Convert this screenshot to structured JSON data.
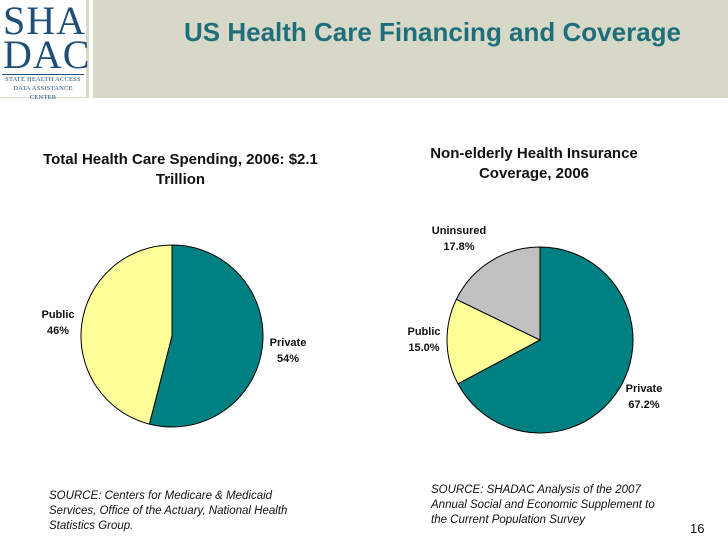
{
  "header": {
    "title": "US Health Care Financing and Coverage",
    "logo": {
      "line1": "SHA",
      "line2": "DAC",
      "sub1": "STATE HEALTH ACCESS",
      "sub2": "DATA ASSISTANCE CENTER"
    }
  },
  "colors": {
    "teal": "#008080",
    "yellow": "#ffff99",
    "gray": "#c0c0c0",
    "title": "#1f6f7a",
    "band": "#d7d8c8"
  },
  "chart_data": [
    {
      "type": "pie",
      "title": "Total Health Care Spending, 2006: $2.1 Trillion",
      "slices": [
        {
          "name": "Private",
          "value": 54,
          "label": "54%",
          "color": "#008080"
        },
        {
          "name": "Public",
          "value": 46,
          "label": "46%",
          "color": "#ffff99"
        }
      ],
      "legend": "none",
      "source": "SOURCE: Centers for Medicare & Medicaid Services, Office of the Actuary, National Health Statistics Group."
    },
    {
      "type": "pie",
      "title": "Non-elderly Health Insurance Coverage, 2006",
      "slices": [
        {
          "name": "Private",
          "value": 67.2,
          "label": "67.2%",
          "color": "#008080"
        },
        {
          "name": "Public",
          "value": 15.0,
          "label": "15.0%",
          "color": "#ffff99"
        },
        {
          "name": "Uninsured",
          "value": 17.8,
          "label": "17.8%",
          "color": "#c0c0c0"
        }
      ],
      "legend": "none",
      "source": "SOURCE: SHADAC Analysis of the 2007 Annual Social and Economic Supplement to the Current Population Survey"
    }
  ],
  "page_number": "16"
}
